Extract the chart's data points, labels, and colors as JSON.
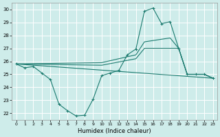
{
  "xlabel": "Humidex (Indice chaleur)",
  "ylim": [
    21.5,
    30.5
  ],
  "yticks": [
    22,
    23,
    24,
    25,
    26,
    27,
    28,
    29,
    30
  ],
  "xticks": [
    0,
    1,
    2,
    3,
    4,
    5,
    6,
    7,
    8,
    9,
    10,
    11,
    12,
    13,
    14,
    15,
    16,
    17,
    18,
    19,
    20,
    21,
    22,
    23
  ],
  "background_color": "#ceecea",
  "line_color": "#1a7a6e",
  "grid_color": "#ffffff",
  "main_line": {
    "x": [
      0,
      1,
      2,
      3,
      4,
      5,
      6,
      7,
      8,
      9,
      10,
      11,
      12,
      13,
      14,
      15,
      16,
      17,
      18,
      19,
      20,
      21,
      22,
      23
    ],
    "y": [
      25.8,
      25.5,
      25.6,
      25.1,
      24.6,
      22.7,
      22.2,
      21.8,
      21.85,
      23.1,
      24.9,
      25.1,
      25.3,
      26.5,
      26.95,
      29.85,
      30.1,
      28.9,
      29.05,
      27.0,
      25.0,
      25.0,
      25.0,
      24.7
    ]
  },
  "straight_line": {
    "x": [
      0,
      23
    ],
    "y": [
      25.8,
      24.7
    ]
  },
  "upper_smooth_line": {
    "x": [
      0,
      10,
      14,
      15,
      18,
      19,
      20,
      21,
      22,
      23
    ],
    "y": [
      25.8,
      25.9,
      26.5,
      27.5,
      27.8,
      27.0,
      25.0,
      25.0,
      25.0,
      24.7
    ]
  },
  "lower_smooth_line": {
    "x": [
      0,
      10,
      14,
      15,
      18,
      19,
      20,
      21,
      22,
      23
    ],
    "y": [
      25.8,
      25.7,
      26.2,
      27.0,
      27.0,
      27.0,
      25.0,
      25.0,
      25.0,
      24.7
    ]
  }
}
